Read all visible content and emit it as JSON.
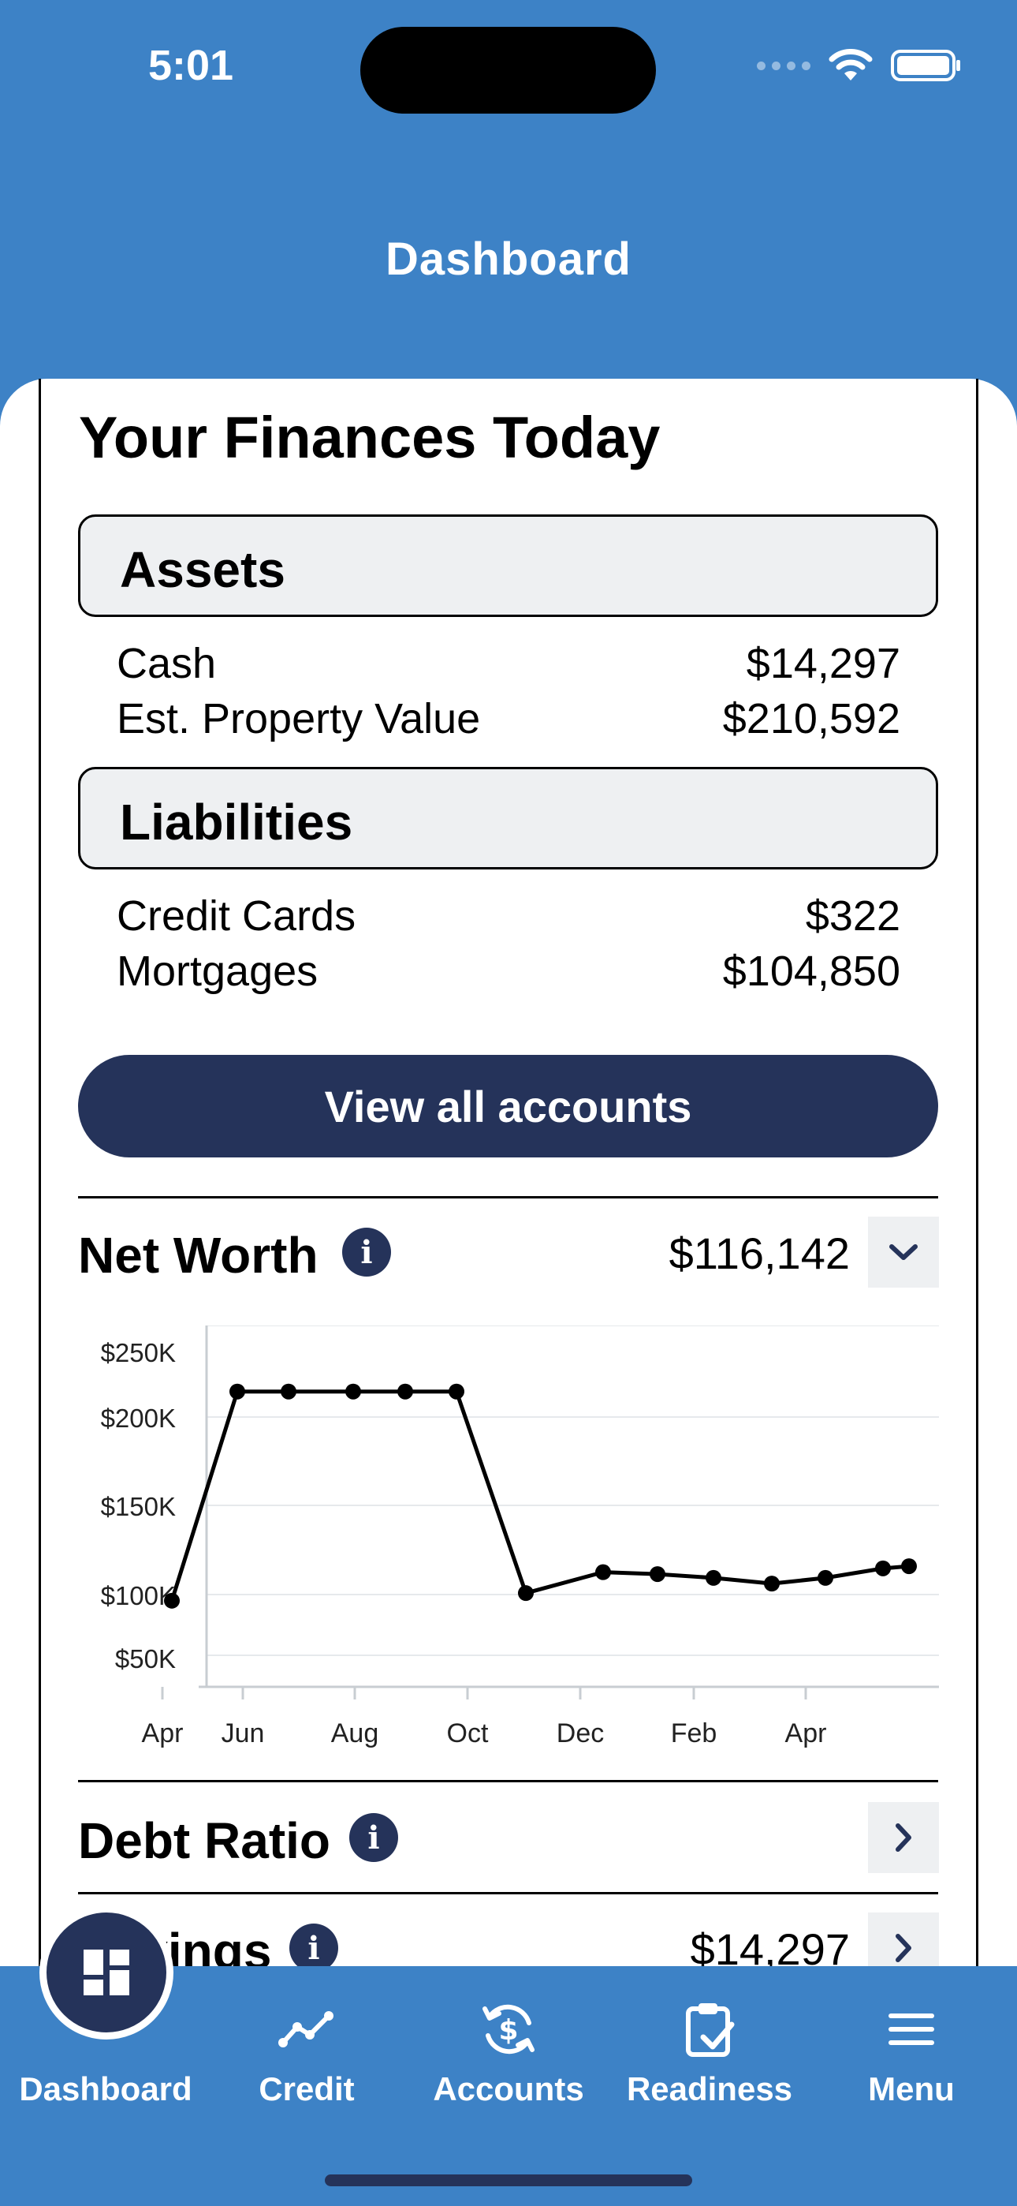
{
  "status_bar": {
    "time": "5:01"
  },
  "header": {
    "title": "Dashboard"
  },
  "finances": {
    "title": "Your Finances Today",
    "assets": {
      "label": "Assets",
      "items": [
        {
          "name": "Cash",
          "value": "$14,297"
        },
        {
          "name": "Est. Property Value",
          "value": "$210,592"
        }
      ]
    },
    "liabilities": {
      "label": "Liabilities",
      "items": [
        {
          "name": "Credit Cards",
          "value": "$322"
        },
        {
          "name": "Mortgages",
          "value": "$104,850"
        }
      ]
    },
    "view_all_label": "View all accounts"
  },
  "net_worth": {
    "label": "Net Worth",
    "value": "$116,142"
  },
  "debt_ratio": {
    "label": "Debt Ratio"
  },
  "savings": {
    "label": "Savings",
    "value": "$14,297"
  },
  "chart_data": {
    "type": "line",
    "title": "",
    "xlabel": "",
    "ylabel": "",
    "x_ticks": [
      "Apr",
      "Jun",
      "Aug",
      "Oct",
      "Dec",
      "Feb",
      "Apr"
    ],
    "y_ticks": [
      "$250K",
      "$200K",
      "$150K",
      "$100K",
      "$50K"
    ],
    "ylim": [
      50000,
      250000
    ],
    "x": [
      "Apr 15",
      "May 15",
      "Jun 15",
      "Jul 15",
      "Aug 15",
      "Sep 15",
      "Oct 15",
      "Nov 15",
      "Dec 15",
      "Jan 15",
      "Feb 15",
      "Mar 15",
      "Apr 15",
      "May 1"
    ],
    "series": [
      {
        "values": [
          98000,
          208000,
          208000,
          208000,
          208000,
          208000,
          102000,
          113000,
          112000,
          110000,
          107000,
          110000,
          115000,
          116142
        ]
      }
    ],
    "grid": true
  },
  "tabs": [
    {
      "label": "Dashboard",
      "icon": "dashboard-icon"
    },
    {
      "label": "Credit",
      "icon": "trend-icon"
    },
    {
      "label": "Accounts",
      "icon": "dollar-sync-icon"
    },
    {
      "label": "Readiness",
      "icon": "clipboard-check-icon"
    },
    {
      "label": "Menu",
      "icon": "hamburger-icon"
    }
  ],
  "colors": {
    "brand_blue": "#3d82c6",
    "navy": "#25335a",
    "panel_gray": "#eef0f2"
  }
}
